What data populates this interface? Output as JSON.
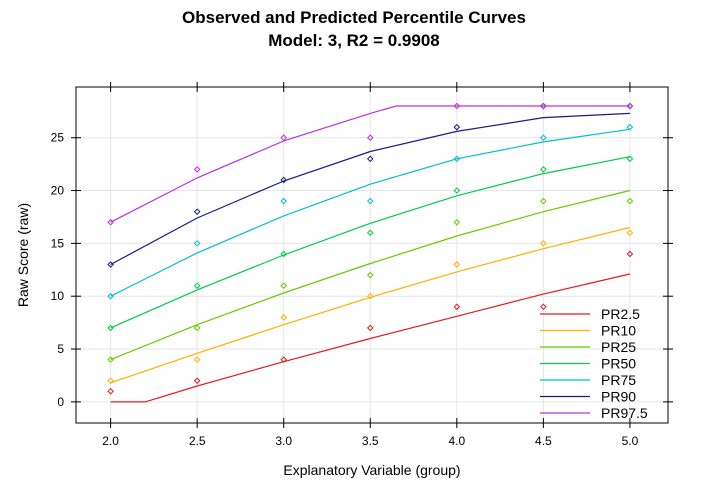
{
  "chart_data": {
    "type": "line",
    "title": "Observed and Predicted Percentile Curves",
    "subtitle": "Model: 3, R2 = 0.9908",
    "xlabel": "Explanatory Variable (group)",
    "ylabel": "Raw Score (raw)",
    "xlim": [
      1.8,
      5.22
    ],
    "ylim": [
      -2,
      29.8
    ],
    "xticks": [
      2.0,
      2.5,
      3.0,
      3.5,
      4.0,
      4.5,
      5.0
    ],
    "xtick_labels": [
      "2.0",
      "2.5",
      "3.0",
      "3.5",
      "4.0",
      "4.5",
      "5.0"
    ],
    "yticks": [
      0,
      5,
      10,
      15,
      20,
      25
    ],
    "ytick_labels": [
      "0",
      "5",
      "10",
      "15",
      "20",
      "25"
    ],
    "grid": true,
    "legend_position": "bottom-right",
    "series": [
      {
        "name": "PR2.5",
        "color": "#e41a1c",
        "curve_x": [
          2.0,
          2.2,
          2.5,
          3.0,
          3.5,
          4.0,
          4.5,
          5.0
        ],
        "curve_y": [
          0.0,
          0.0,
          1.5,
          3.8,
          6.0,
          8.1,
          10.2,
          12.1
        ],
        "observed_x": [
          2.0,
          2.5,
          3.0,
          3.5,
          4.0,
          4.5,
          5.0
        ],
        "observed_y": [
          1,
          2,
          4,
          7,
          9,
          9,
          14
        ]
      },
      {
        "name": "PR10",
        "color": "#ffb000",
        "curve_x": [
          2.0,
          2.5,
          3.0,
          3.5,
          4.0,
          4.5,
          5.0
        ],
        "curve_y": [
          1.8,
          4.6,
          7.3,
          9.9,
          12.3,
          14.5,
          16.5
        ],
        "observed_x": [
          2.0,
          2.5,
          3.0,
          3.5,
          4.0,
          4.5,
          5.0
        ],
        "observed_y": [
          2,
          4,
          8,
          10,
          13,
          15,
          16
        ]
      },
      {
        "name": "PR25",
        "color": "#66cc00",
        "curve_x": [
          2.0,
          2.5,
          3.0,
          3.5,
          4.0,
          4.5,
          5.0
        ],
        "curve_y": [
          4.0,
          7.3,
          10.3,
          13.1,
          15.7,
          18.0,
          20.0
        ],
        "observed_x": [
          2.0,
          2.5,
          3.0,
          3.5,
          4.0,
          4.5,
          5.0
        ],
        "observed_y": [
          4,
          7,
          11,
          12,
          17,
          19,
          19
        ]
      },
      {
        "name": "PR50",
        "color": "#00cc44",
        "curve_x": [
          2.0,
          2.5,
          3.0,
          3.5,
          4.0,
          4.5,
          5.0
        ],
        "curve_y": [
          7.0,
          10.6,
          13.9,
          16.9,
          19.5,
          21.6,
          23.2
        ],
        "observed_x": [
          2.0,
          2.5,
          3.0,
          3.5,
          4.0,
          4.5,
          5.0
        ],
        "observed_y": [
          7,
          11,
          14,
          16,
          20,
          22,
          23
        ]
      },
      {
        "name": "PR75",
        "color": "#00bfcf",
        "curve_x": [
          2.0,
          2.5,
          3.0,
          3.5,
          4.0,
          4.5,
          5.0
        ],
        "curve_y": [
          10.0,
          14.1,
          17.6,
          20.6,
          23.0,
          24.6,
          25.8
        ],
        "observed_x": [
          2.0,
          2.5,
          3.0,
          3.5,
          4.0,
          4.5,
          5.0
        ],
        "observed_y": [
          10,
          15,
          19,
          19,
          23,
          25,
          26
        ]
      },
      {
        "name": "PR90",
        "color": "#1a1a8c",
        "curve_x": [
          2.0,
          2.5,
          3.0,
          3.5,
          4.0,
          4.5,
          5.0
        ],
        "curve_y": [
          13.0,
          17.4,
          20.9,
          23.7,
          25.6,
          26.9,
          27.3
        ],
        "observed_x": [
          2.0,
          2.5,
          3.0,
          3.5,
          4.0,
          4.5,
          5.0
        ],
        "observed_y": [
          13,
          18,
          21,
          23,
          26,
          28,
          28
        ]
      },
      {
        "name": "PR97.5",
        "color": "#bb33dd",
        "curve_x": [
          2.0,
          2.5,
          3.0,
          3.5,
          3.65,
          4.0,
          4.5,
          5.0
        ],
        "curve_y": [
          17.0,
          21.2,
          24.7,
          27.3,
          28.0,
          28.0,
          28.0,
          28.0
        ],
        "observed_x": [
          2.0,
          2.5,
          3.0,
          3.5,
          4.0,
          4.5,
          5.0
        ],
        "observed_y": [
          17,
          22,
          25,
          25,
          28,
          28,
          28
        ]
      }
    ]
  }
}
